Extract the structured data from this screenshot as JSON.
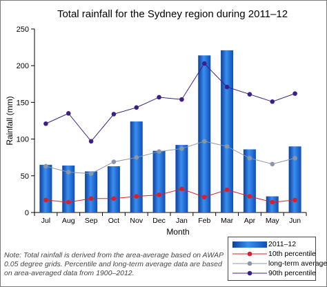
{
  "chart_data": {
    "type": "bar",
    "title": "Total rainfall for the Sydney region during 2011–12",
    "xlabel": "Month",
    "ylabel": "Rainfall (mm)",
    "ylim": [
      0,
      250
    ],
    "yticks": [
      0,
      50,
      100,
      150,
      200,
      250
    ],
    "grid": false,
    "legend_position": "bottom-right",
    "categories": [
      "Jul",
      "Aug",
      "Sep",
      "Oct",
      "Nov",
      "Dec",
      "Jan",
      "Feb",
      "Mar",
      "Apr",
      "May",
      "Jun"
    ],
    "series": [
      {
        "name": "2011–12",
        "kind": "bar",
        "color": "#1f6fd0",
        "values": [
          65,
          64,
          56,
          63,
          124,
          84,
          92,
          214,
          221,
          86,
          22,
          90
        ]
      },
      {
        "name": "10th percentile",
        "kind": "line",
        "color": "#d81f2a",
        "values": [
          17,
          14,
          19,
          19,
          22,
          24,
          32,
          21,
          31,
          22,
          14,
          17
        ]
      },
      {
        "name": "long-term average",
        "kind": "line",
        "color": "#8898a8",
        "values": [
          63,
          55,
          53,
          69,
          75,
          83,
          87,
          97,
          90,
          74,
          66,
          74
        ]
      },
      {
        "name": "90th percentile",
        "kind": "line",
        "color": "#3d1f8a",
        "values": [
          121,
          135,
          97,
          134,
          143,
          157,
          154,
          203,
          171,
          161,
          151,
          162
        ]
      }
    ]
  },
  "note": "Note: Total rainfall is derived from the area-average based on AWAP 0.05 degree grids. Percentile and long-term average data are based on area-averaged data from 1900–2012."
}
